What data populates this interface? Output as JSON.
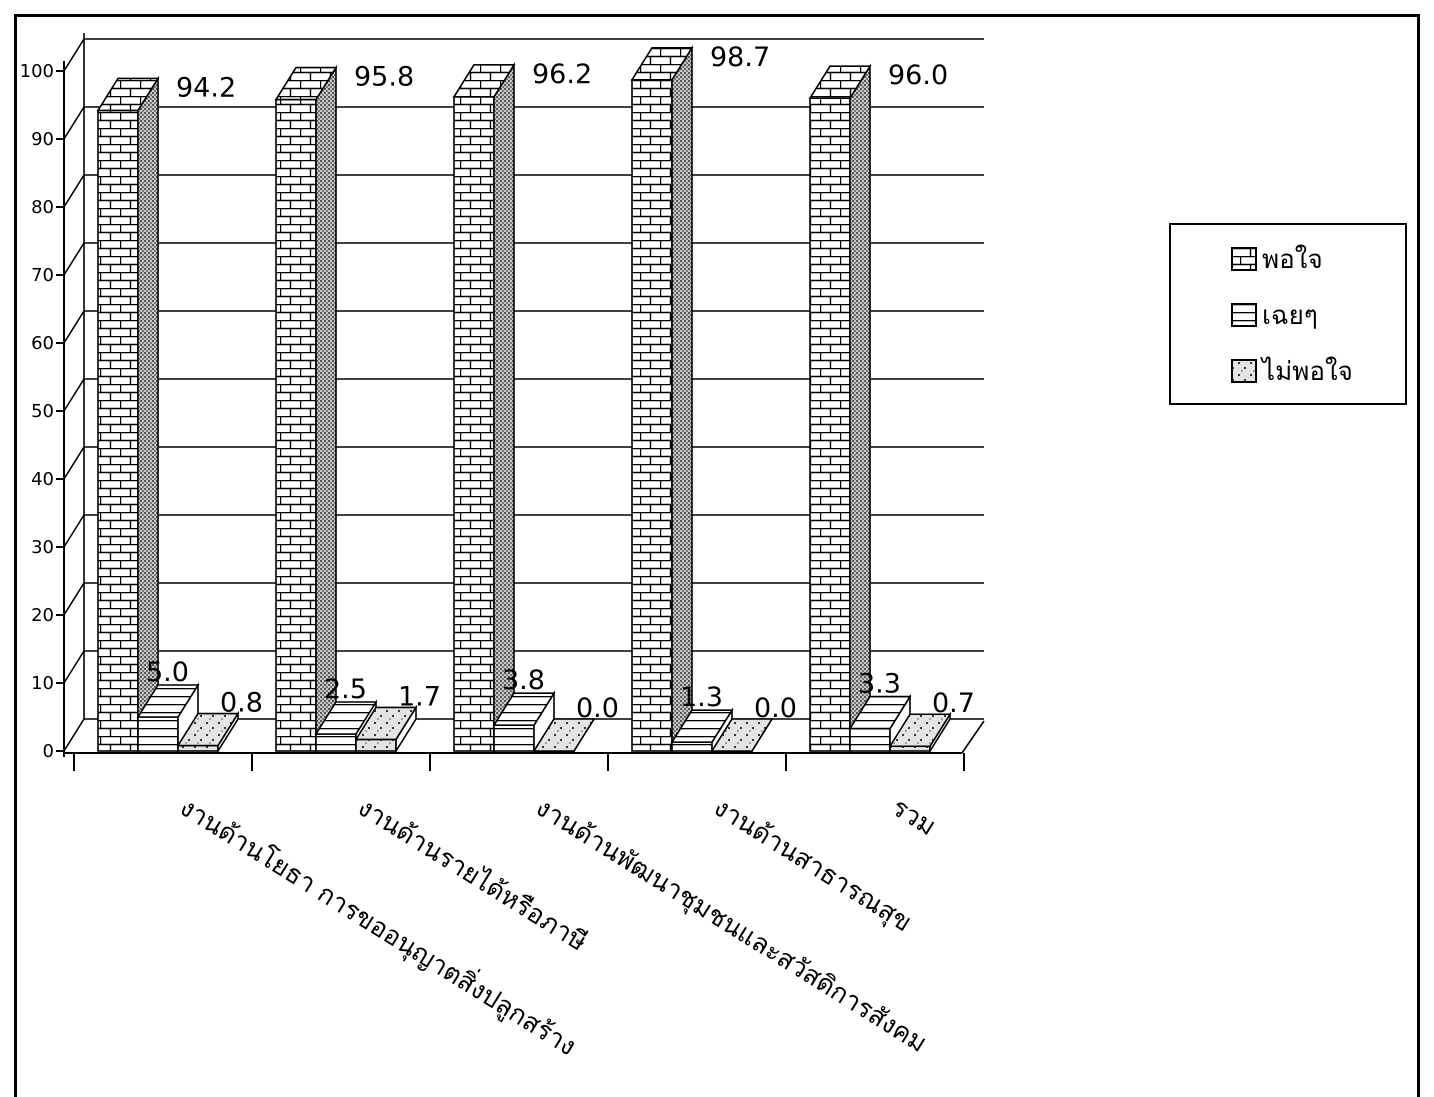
{
  "chart_data": {
    "type": "bar",
    "categories": [
      "งานด้านโยธา การขออนุญาตสิ่งปลูกสร้าง",
      "งานด้านรายได้หรือภาษี",
      "งานด้านพัฒนาชุมชนและสวัสดิการสังคม",
      "งานด้านสาธารณสุข",
      "รวม"
    ],
    "series": [
      {
        "name": "พอใจ",
        "values": [
          94.2,
          95.8,
          96.2,
          98.7,
          96.0
        ],
        "labels": [
          "94.2",
          "95.8",
          "96.2",
          "98.7",
          "96.0"
        ]
      },
      {
        "name": "เฉยๆ",
        "values": [
          5.0,
          2.5,
          3.8,
          1.3,
          3.3
        ],
        "labels": [
          "5.0",
          "2.5",
          "3.8",
          "1.3",
          "3.3"
        ]
      },
      {
        "name": "ไม่พอใจ",
        "values": [
          0.8,
          1.7,
          0.0,
          0.0,
          0.7
        ],
        "labels": [
          "0.8",
          "1.7",
          "0.0",
          "0.0",
          "0.7"
        ]
      }
    ],
    "yticks": [
      "0",
      "10",
      "20",
      "30",
      "40",
      "50",
      "60",
      "70",
      "80",
      "90",
      "100"
    ],
    "ylim": [
      0,
      100
    ],
    "grid": true,
    "legend_position": "right",
    "style": "3d-bar"
  }
}
